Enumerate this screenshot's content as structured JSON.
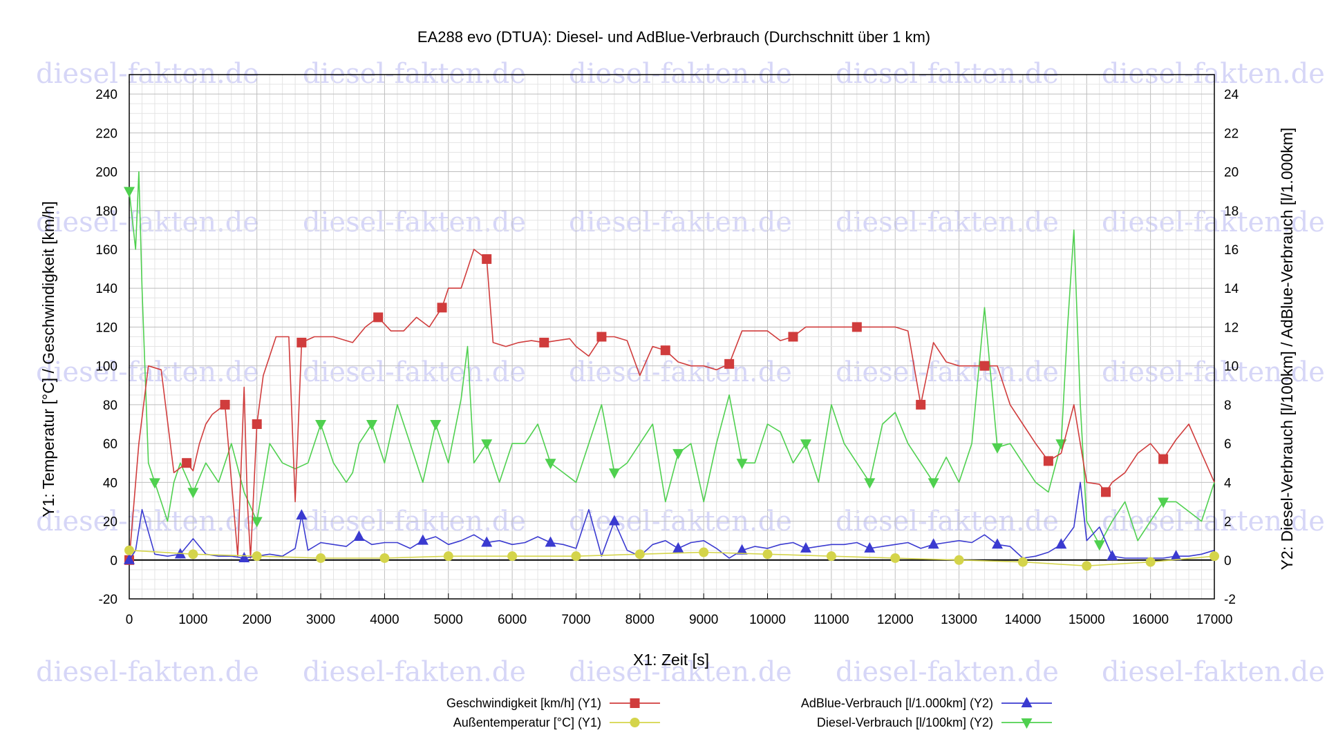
{
  "chart_data": {
    "type": "line",
    "title": "EA288 evo (DTUA): Diesel- und AdBlue-Verbrauch (Durchschnitt über 1 km)",
    "xlabel": "X1: Zeit [s]",
    "ylabel_left": "Y1: Temperatur [°C] / Geschwindigkeit [km/h]",
    "ylabel_right": "Y2: Diesel-Verbrauch [l/100km] / AdBlue-Verbrauch [l/1.000km]",
    "xlim": [
      0,
      17000
    ],
    "ylim_left": [
      -20,
      250
    ],
    "ylim_right": [
      -2,
      25
    ],
    "x_ticks": [
      "0",
      "1000",
      "2000",
      "3000",
      "4000",
      "5000",
      "6000",
      "7000",
      "8000",
      "9000",
      "10000",
      "11000",
      "12000",
      "13000",
      "14000",
      "15000",
      "16000",
      "17000"
    ],
    "y_left_ticks": [
      "-20",
      "0",
      "20",
      "40",
      "60",
      "80",
      "100",
      "120",
      "140",
      "160",
      "180",
      "200",
      "220",
      "240"
    ],
    "y_right_ticks": [
      "-2",
      "0",
      "2",
      "4",
      "6",
      "8",
      "10",
      "12",
      "14",
      "16",
      "18",
      "20",
      "22",
      "24"
    ],
    "watermark": "diesel-fakten.de",
    "grid": true,
    "legend_position": "bottom",
    "colors": {
      "speed": "#d03c3c",
      "temp": "#d4d44a",
      "adblue": "#3a3ad0",
      "diesel": "#4fd04f"
    },
    "series": [
      {
        "name": "Geschwindigkeit [km/h] (Y1)",
        "axis": "left",
        "color": "#d03c3c",
        "marker": "square",
        "x": [
          0,
          150,
          300,
          500,
          700,
          900,
          1000,
          1100,
          1200,
          1300,
          1500,
          1700,
          1800,
          1850,
          1900,
          2000,
          2100,
          2300,
          2500,
          2600,
          2700,
          2900,
          3200,
          3500,
          3700,
          3900,
          4100,
          4300,
          4500,
          4700,
          4900,
          5000,
          5200,
          5300,
          5400,
          5600,
          5700,
          5900,
          6100,
          6300,
          6500,
          6700,
          6900,
          7000,
          7200,
          7400,
          7600,
          7800,
          8000,
          8200,
          8400,
          8600,
          8800,
          9000,
          9200,
          9400,
          9600,
          9800,
          10000,
          10200,
          10400,
          10600,
          10800,
          11000,
          11200,
          11400,
          11600,
          11800,
          12000,
          12200,
          12400,
          12600,
          12800,
          13000,
          13200,
          13400,
          13600,
          13800,
          14000,
          14200,
          14400,
          14600,
          14800,
          15000,
          15200,
          15300,
          15400,
          15600,
          15800,
          16000,
          16200,
          16400,
          16600,
          16800,
          17000
        ],
        "y": [
          0,
          60,
          100,
          98,
          45,
          50,
          46,
          60,
          70,
          75,
          80,
          2,
          89,
          30,
          1,
          70,
          95,
          115,
          115,
          30,
          112,
          115,
          115,
          112,
          120,
          125,
          118,
          118,
          125,
          120,
          130,
          140,
          140,
          150,
          160,
          155,
          112,
          110,
          112,
          113,
          112,
          113,
          114,
          110,
          105,
          115,
          115,
          113,
          95,
          110,
          108,
          102,
          100,
          100,
          98,
          101,
          118,
          118,
          118,
          113,
          115,
          120,
          120,
          120,
          120,
          120,
          120,
          120,
          120,
          118,
          80,
          112,
          102,
          100,
          100,
          100,
          100,
          80,
          70,
          60,
          51,
          55,
          80,
          40,
          39,
          35,
          40,
          45,
          55,
          60,
          52,
          62,
          70,
          55,
          40
        ]
      },
      {
        "name": "Außentemperatur [°C] (Y1)",
        "axis": "left",
        "color": "#d4d44a",
        "marker": "circle",
        "x": [
          0,
          1000,
          2000,
          3000,
          4000,
          5000,
          6000,
          7000,
          8000,
          9000,
          10000,
          11000,
          12000,
          13000,
          14000,
          15000,
          16000,
          17000
        ],
        "y": [
          5,
          3,
          2,
          1,
          1,
          2,
          2,
          2,
          3,
          4,
          3,
          2,
          1,
          0,
          -1,
          -3,
          -1,
          2
        ]
      },
      {
        "name": "AdBlue-Verbrauch [l/1.000km] (Y2)",
        "axis": "right",
        "color": "#3a3ad0",
        "marker": "triangle-up",
        "x": [
          0,
          100,
          200,
          400,
          600,
          800,
          1000,
          1200,
          1400,
          1600,
          1800,
          2000,
          2200,
          2400,
          2600,
          2700,
          2800,
          3000,
          3200,
          3400,
          3600,
          3800,
          4000,
          4200,
          4400,
          4600,
          4800,
          5000,
          5200,
          5400,
          5600,
          5800,
          6000,
          6200,
          6400,
          6600,
          6800,
          7000,
          7200,
          7400,
          7600,
          7800,
          8000,
          8200,
          8400,
          8600,
          8800,
          9000,
          9200,
          9400,
          9600,
          9800,
          10000,
          10200,
          10400,
          10600,
          10800,
          11000,
          11200,
          11400,
          11600,
          11800,
          12000,
          12200,
          12400,
          12600,
          12800,
          13000,
          13200,
          13400,
          13600,
          13800,
          14000,
          14200,
          14400,
          14600,
          14800,
          14900,
          15000,
          15200,
          15400,
          15600,
          15800,
          16000,
          16200,
          16400,
          16600,
          16800,
          17000
        ],
        "y": [
          0,
          0.5,
          2.6,
          0.3,
          0.2,
          0.3,
          1.1,
          0.3,
          0.2,
          0.2,
          0.1,
          0.2,
          0.3,
          0.2,
          0.6,
          2.3,
          0.5,
          0.9,
          0.8,
          0.7,
          1.2,
          0.8,
          0.9,
          0.9,
          0.6,
          1.0,
          1.2,
          0.8,
          1.0,
          1.3,
          0.9,
          1.0,
          0.8,
          0.9,
          1.2,
          0.9,
          0.8,
          0.6,
          2.6,
          0.2,
          2.0,
          0.5,
          0.2,
          0.8,
          1.0,
          0.6,
          0.9,
          1.0,
          0.6,
          0.1,
          0.5,
          0.7,
          0.6,
          0.8,
          0.9,
          0.6,
          0.7,
          0.8,
          0.8,
          0.9,
          0.6,
          0.7,
          0.8,
          0.9,
          0.6,
          0.8,
          0.9,
          1.0,
          0.9,
          1.3,
          0.8,
          0.7,
          0.1,
          0.2,
          0.4,
          0.8,
          1.7,
          4.0,
          1.0,
          1.7,
          0.2,
          0.1,
          0.1,
          0.1,
          0.1,
          0.2,
          0.2,
          0.3,
          0.5
        ]
      },
      {
        "name": "Diesel-Verbrauch [l/100km] (Y2)",
        "axis": "right",
        "color": "#4fd04f",
        "marker": "triangle-down",
        "x": [
          0,
          100,
          150,
          200,
          300,
          400,
          500,
          600,
          700,
          800,
          1000,
          1200,
          1400,
          1600,
          1800,
          2000,
          2200,
          2400,
          2600,
          2800,
          3000,
          3200,
          3400,
          3500,
          3600,
          3800,
          4000,
          4200,
          4400,
          4600,
          4800,
          5000,
          5200,
          5300,
          5400,
          5600,
          5800,
          6000,
          6200,
          6400,
          6600,
          6800,
          7000,
          7200,
          7400,
          7600,
          7800,
          8000,
          8200,
          8400,
          8600,
          8800,
          9000,
          9200,
          9400,
          9600,
          9800,
          10000,
          10200,
          10400,
          10600,
          10800,
          11000,
          11200,
          11400,
          11600,
          11800,
          12000,
          12200,
          12400,
          12600,
          12800,
          13000,
          13200,
          13400,
          13600,
          13800,
          14000,
          14200,
          14400,
          14600,
          14700,
          14800,
          14900,
          15000,
          15200,
          15400,
          15600,
          15800,
          16000,
          16200,
          16400,
          16600,
          16800,
          17000
        ],
        "y": [
          19,
          16,
          20,
          14,
          5,
          4,
          3,
          2,
          4,
          5,
          3.5,
          5,
          4,
          6,
          3.5,
          2,
          6,
          5,
          4.7,
          5,
          7,
          5,
          4,
          4.5,
          6,
          7,
          5,
          8,
          6,
          4,
          7,
          5,
          8.3,
          11,
          5,
          6,
          4,
          6,
          6,
          7,
          5,
          4.5,
          4,
          6,
          8,
          4.5,
          5,
          6,
          7,
          3,
          5.5,
          6,
          3,
          6,
          8.5,
          5,
          5,
          7,
          6.6,
          5,
          6,
          4,
          8,
          6,
          5,
          4,
          7,
          7.6,
          6,
          5,
          4,
          5.3,
          4,
          6,
          13,
          5.8,
          6,
          5,
          4,
          3.5,
          6,
          12,
          17,
          8,
          2,
          0.8,
          2,
          3,
          1,
          2,
          3,
          3,
          2.5,
          2,
          4
        ]
      }
    ]
  },
  "legend": {
    "entries": [
      {
        "label": "Geschwindigkeit [km/h] (Y1)",
        "color": "#d03c3c",
        "marker": "square"
      },
      {
        "label": "AdBlue-Verbrauch [l/1.000km] (Y2)",
        "color": "#3a3ad0",
        "marker": "triangle-up"
      },
      {
        "label": "Außentemperatur [°C] (Y1)",
        "color": "#d4d44a",
        "marker": "circle"
      },
      {
        "label": "Diesel-Verbrauch [l/100km] (Y2)",
        "color": "#4fd04f",
        "marker": "triangle-down"
      }
    ]
  }
}
